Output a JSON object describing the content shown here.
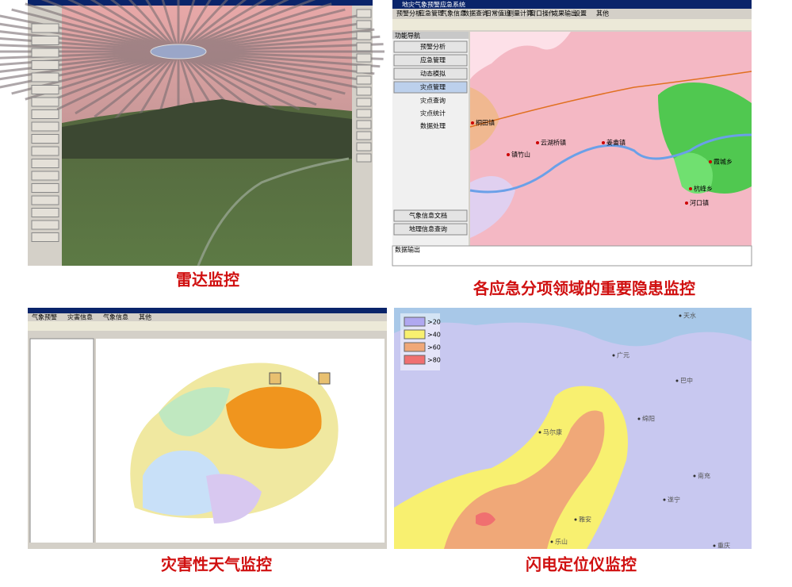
{
  "panels": [
    {
      "caption": "雷达监控"
    },
    {
      "caption": "各应急分项领域的重要隐患监控",
      "title": "地灾气象预警应急系统",
      "menu": [
        "预警分析",
        "应急管理",
        "气象信息",
        "数据查询",
        "日常值班",
        "测量计算",
        "窗口操作",
        "成果输出",
        "设置",
        "其他"
      ],
      "nav_title": "功能导航",
      "nav_buttons": [
        "预警分析",
        "应急管理",
        "动态模拟",
        "灾点管理"
      ],
      "sub_items": [
        "灾点查询",
        "灾点统计",
        "数据处理"
      ],
      "bottom_buttons": [
        "气象信息文档",
        "地理信息查询"
      ],
      "output_title": "数据输出",
      "places": [
        "桐田镇",
        "镇竹山",
        "云湖桥镇",
        "姜畬镇",
        "霞城乡",
        "河口镇",
        "杭峰乡"
      ]
    },
    {
      "caption": "灾害性天气监控",
      "menu": [
        "气象预警",
        "灾害信息",
        "气象信息",
        "其他"
      ]
    },
    {
      "caption": "闪电定位仪监控",
      "legend": [
        ">20",
        ">40",
        ">60",
        ">80"
      ],
      "places": [
        "天水",
        "广元",
        "巴中",
        "绵阳",
        "南充",
        "遂宁",
        "雅安",
        "乐山",
        "重庆",
        "马尔康"
      ]
    }
  ]
}
